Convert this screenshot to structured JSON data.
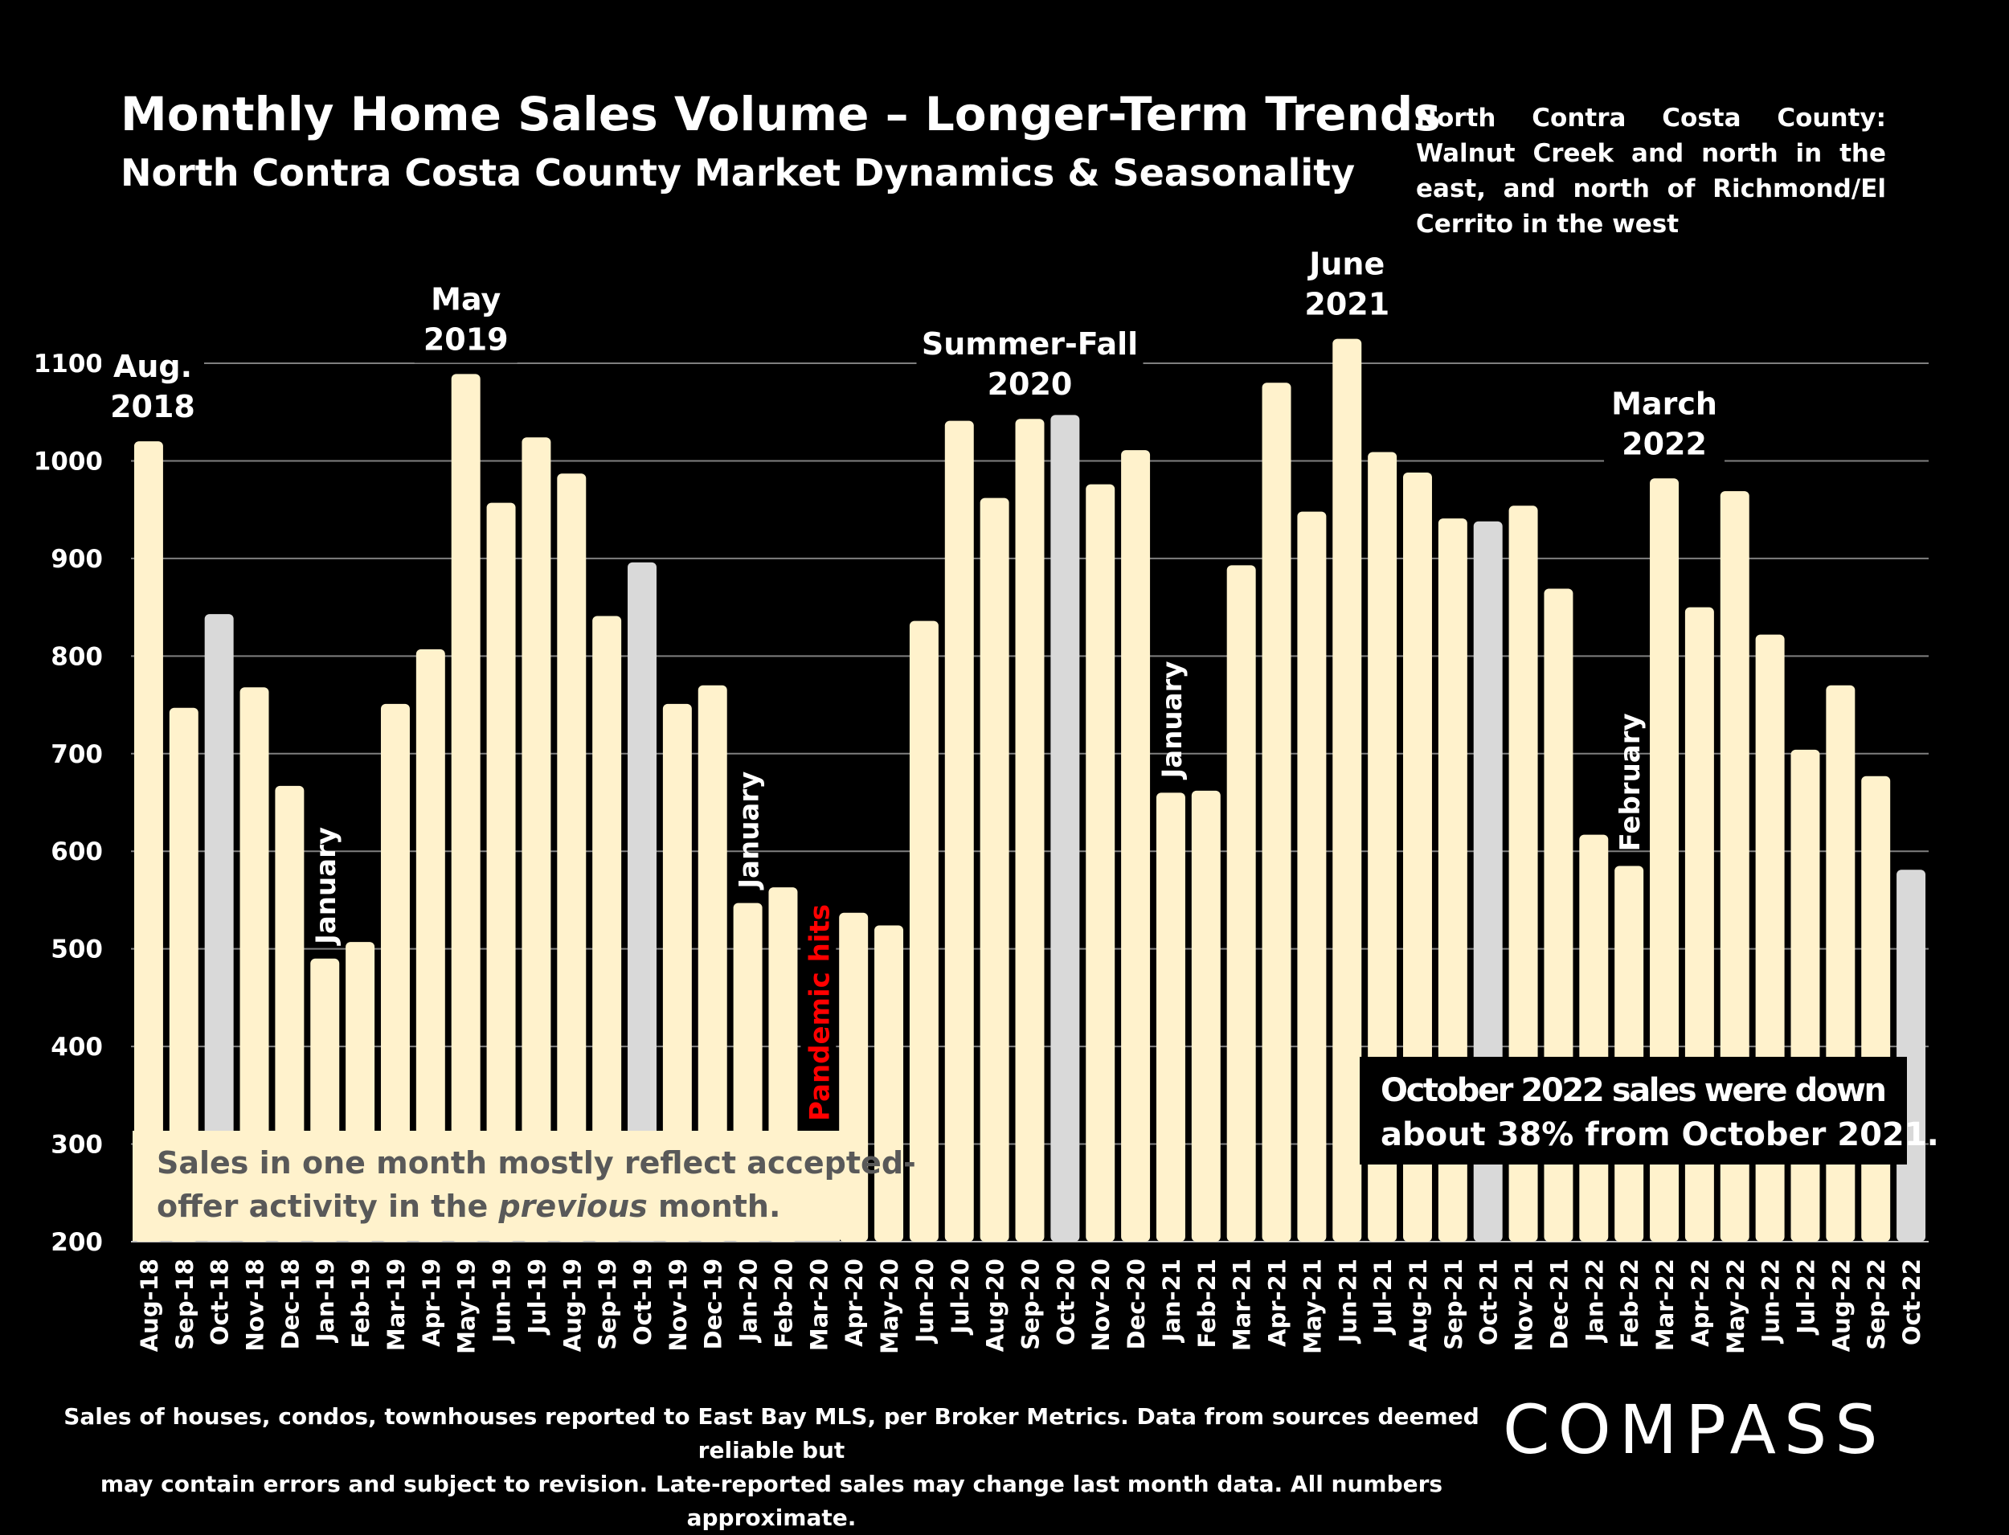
{
  "header": {
    "title": "Monthly Home Sales Volume – Longer-Term Trends",
    "subtitle": "North Contra Costa County Market Dynamics & Seasonality",
    "region_note": "North Contra Costa County: Walnut Creek and north in the east, and north of Richmond/El Cerrito in the west"
  },
  "chart_data": {
    "type": "bar",
    "title": "Monthly Home Sales Volume – Longer-Term Trends",
    "subtitle": "North Contra Costa County Market Dynamics & Seasonality",
    "xlabel": "",
    "ylabel": "",
    "ylim": [
      200,
      1100
    ],
    "yticks": [
      200,
      300,
      400,
      500,
      600,
      700,
      800,
      900,
      1000,
      1100
    ],
    "grid": true,
    "categories": [
      "Aug-18",
      "Sep-18",
      "Oct-18",
      "Nov-18",
      "Dec-18",
      "Jan-19",
      "Feb-19",
      "Mar-19",
      "Apr-19",
      "May-19",
      "Jun-19",
      "Jul-19",
      "Aug-19",
      "Sep-19",
      "Oct-19",
      "Nov-19",
      "Dec-19",
      "Jan-20",
      "Feb-20",
      "Mar-20",
      "Apr-20",
      "May-20",
      "Jun-20",
      "Jul-20",
      "Aug-20",
      "Sep-20",
      "Oct-20",
      "Nov-20",
      "Dec-20",
      "Jan-21",
      "Feb-21",
      "Mar-21",
      "Apr-21",
      "May-21",
      "Jun-21",
      "Jul-21",
      "Aug-21",
      "Sep-21",
      "Oct-21",
      "Nov-21",
      "Dec-21",
      "Jan-22",
      "Feb-22",
      "Mar-22",
      "Apr-22",
      "May-22",
      "Jun-22",
      "Jul-22",
      "Aug-22",
      "Sep-22",
      "Oct-22"
    ],
    "values": [
      1020,
      747,
      843,
      768,
      667,
      490,
      507,
      751,
      807,
      1089,
      957,
      1024,
      987,
      841,
      896,
      751,
      770,
      547,
      563,
      null,
      537,
      524,
      836,
      1041,
      962,
      1043,
      1047,
      976,
      1011,
      660,
      662,
      893,
      1080,
      948,
      1125,
      1009,
      988,
      941,
      938,
      954,
      869,
      617,
      585,
      982,
      850,
      969,
      822,
      704,
      770,
      677,
      581
    ],
    "highlight_colors": {
      "default": "#fff2cc",
      "october": "#d9d9d9"
    },
    "highlighted_categories": [
      "Oct-18",
      "Oct-19",
      "Oct-20",
      "Oct-21",
      "Oct-22"
    ],
    "annotations": [
      {
        "text": "Aug. 2018",
        "lines": [
          "Aug.",
          "2018"
        ],
        "category": "Aug-18"
      },
      {
        "text": "May 2019",
        "lines": [
          "May",
          "2019"
        ],
        "category": "May-19"
      },
      {
        "text": "Summer-Fall 2020",
        "lines": [
          "Summer-Fall",
          "2020"
        ],
        "category": "Sep-20"
      },
      {
        "text": "June 2021",
        "lines": [
          "June",
          "2021"
        ],
        "category": "Jun-21"
      },
      {
        "text": "March 2022",
        "lines": [
          "March",
          "2022"
        ],
        "category": "Mar-22"
      }
    ],
    "vertical_annotations": [
      {
        "text": "January",
        "category": "Jan-19"
      },
      {
        "text": "January",
        "category": "Jan-20"
      },
      {
        "text": "January",
        "category": "Jan-21"
      },
      {
        "text": "February",
        "category": "Feb-22"
      },
      {
        "text": "Pandemic hits",
        "category": "Mar-20",
        "color": "#ff0000"
      }
    ],
    "callouts": {
      "note_left_line1": "Sales in one month mostly reflect accepted-",
      "note_left_line2_a": "offer activity in the ",
      "note_left_line2_b": "previous",
      "note_left_line2_c": " month.",
      "note_right_line1": "October 2022 sales were down",
      "note_right_line2": "about 38% from October 2021."
    }
  },
  "footer": {
    "footnote_line1": "Sales of houses, condos, townhouses reported to East Bay MLS, per Broker Metrics. Data from sources deemed reliable but",
    "footnote_line2": "may contain errors and subject to revision. Late-reported sales may change last month data. All numbers approximate.",
    "logo": "COMPASS"
  }
}
